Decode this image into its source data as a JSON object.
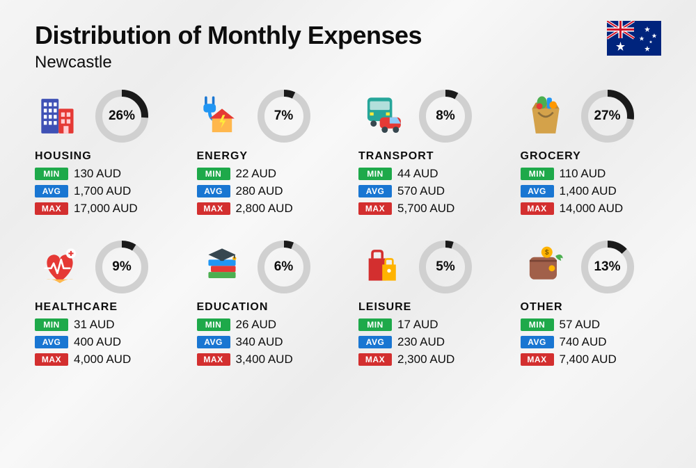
{
  "title": "Distribution of Monthly Expenses",
  "subtitle": "Newcastle",
  "donut": {
    "radius": 33,
    "stroke_width": 10,
    "track_color": "#d0d0d0",
    "fill_color": "#1a1a1a"
  },
  "labels": {
    "min": "MIN",
    "avg": "AVG",
    "max": "MAX"
  },
  "tag_colors": {
    "min": "#1ea94a",
    "avg": "#1976d2",
    "max": "#d32f2f"
  },
  "currency": "AUD",
  "categories": [
    {
      "key": "housing",
      "name": "HOUSING",
      "percent": 26,
      "min": "130",
      "avg": "1,700",
      "max": "17,000",
      "icon": "housing-icon"
    },
    {
      "key": "energy",
      "name": "ENERGY",
      "percent": 7,
      "min": "22",
      "avg": "280",
      "max": "2,800",
      "icon": "energy-icon"
    },
    {
      "key": "transport",
      "name": "TRANSPORT",
      "percent": 8,
      "min": "44",
      "avg": "570",
      "max": "5,700",
      "icon": "transport-icon"
    },
    {
      "key": "grocery",
      "name": "GROCERY",
      "percent": 27,
      "min": "110",
      "avg": "1,400",
      "max": "14,000",
      "icon": "grocery-icon"
    },
    {
      "key": "healthcare",
      "name": "HEALTHCARE",
      "percent": 9,
      "min": "31",
      "avg": "400",
      "max": "4,000",
      "icon": "healthcare-icon"
    },
    {
      "key": "education",
      "name": "EDUCATION",
      "percent": 6,
      "min": "26",
      "avg": "340",
      "max": "3,400",
      "icon": "education-icon"
    },
    {
      "key": "leisure",
      "name": "LEISURE",
      "percent": 5,
      "min": "17",
      "avg": "230",
      "max": "2,300",
      "icon": "leisure-icon"
    },
    {
      "key": "other",
      "name": "OTHER",
      "percent": 13,
      "min": "57",
      "avg": "740",
      "max": "7,400",
      "icon": "other-icon"
    }
  ]
}
